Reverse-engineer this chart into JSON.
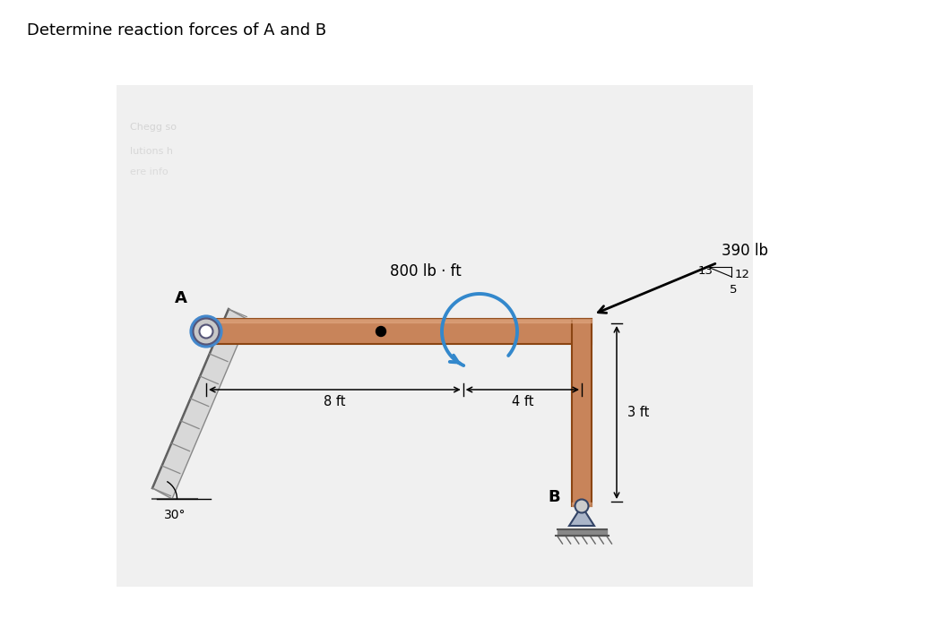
{
  "title": "Determine reaction forces of A and B",
  "title_fontsize": 13,
  "bg_color": "#ffffff",
  "panel_bg": "#f2f2f2",
  "beam_color": "#c8845a",
  "beam_edge": "#8b4513",
  "beam_highlight": "#e0a882",
  "label_800": "800 lb · ft",
  "label_390": "390 lb",
  "label_8ft": "8 ft",
  "label_4ft": "4 ft",
  "label_3ft": "3 ft",
  "label_30deg": "30°",
  "label_A": "A",
  "label_B": "B",
  "label_13": "13",
  "label_12": "12",
  "label_5": "5"
}
